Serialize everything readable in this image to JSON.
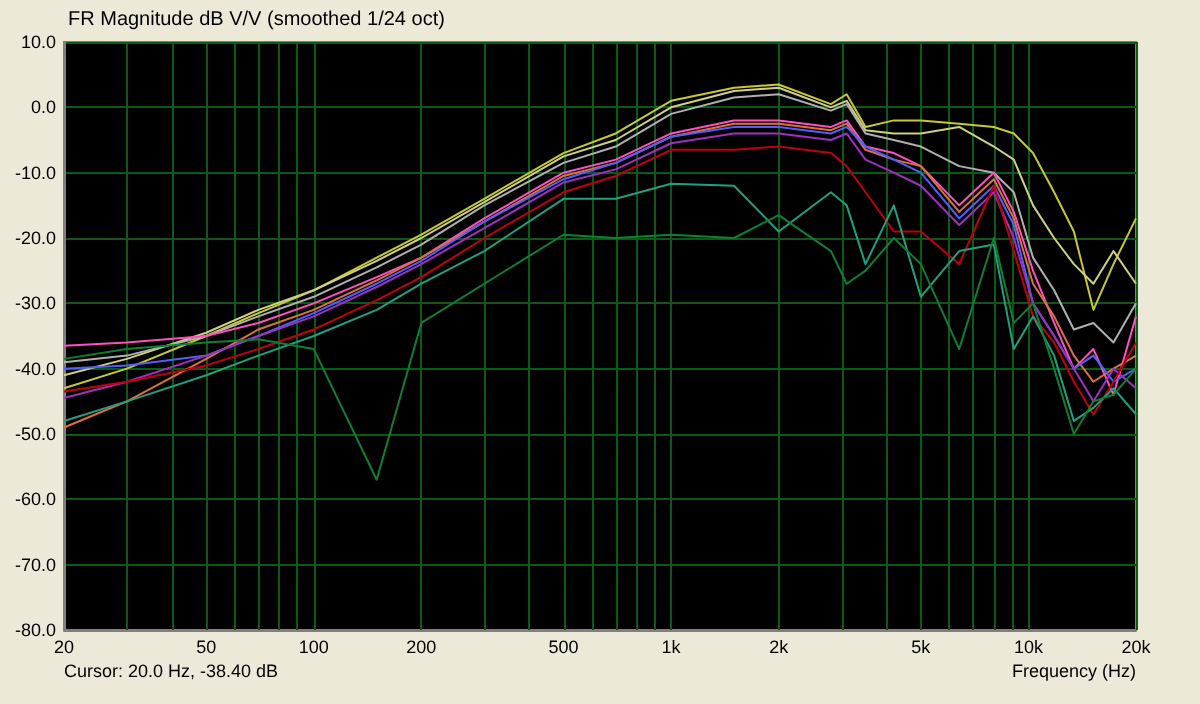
{
  "chart_data": {
    "type": "line",
    "title": "FR Magnitude dB V/V (smoothed 1/24 oct)",
    "xlabel": "Frequency (Hz)",
    "annotations": [
      "Cursor: 20.0 Hz, -38.40 dB"
    ],
    "x": [
      20,
      30,
      50,
      70,
      100,
      150,
      200,
      300,
      500,
      700,
      1000,
      1500,
      2000,
      2800,
      3100,
      3500,
      4200,
      5000,
      6400,
      8000,
      9100,
      10300,
      11800,
      13400,
      15200,
      17300,
      20000
    ],
    "series": [
      {
        "color": "#c8c832",
        "values": [
          -43,
          -40,
          -35,
          -31.5,
          -28,
          -23,
          -19.5,
          -14,
          -7,
          -4,
          1,
          3,
          3.5,
          0.5,
          2,
          -3,
          -2,
          -2,
          -2.5,
          -3,
          -4,
          -7,
          -13,
          -19,
          -31,
          -24,
          -17
        ]
      },
      {
        "color": "#d0d080",
        "values": [
          -41,
          -38.5,
          -34.5,
          -31,
          -28,
          -23.5,
          -20,
          -14.5,
          -7.5,
          -5,
          0,
          2.5,
          3,
          0,
          1,
          -3.5,
          -4,
          -4,
          -3,
          -6,
          -8,
          -15,
          -20,
          -24,
          -27,
          -22,
          -27
        ]
      },
      {
        "color": "#b0b0b0",
        "values": [
          -39,
          -38,
          -35,
          -32,
          -29,
          -24.5,
          -21,
          -15,
          -8.5,
          -6,
          -1,
          1.5,
          2,
          -0.5,
          0.5,
          -4,
          -5,
          -6,
          -9,
          -10,
          -13,
          -23,
          -28,
          -34,
          -33,
          -36,
          -30
        ]
      },
      {
        "color": "#ff50c0",
        "values": [
          -36.5,
          -36,
          -35,
          -33,
          -30,
          -26,
          -23,
          -17,
          -10,
          -8,
          -4,
          -2,
          -2,
          -3,
          -2,
          -6,
          -7,
          -9,
          -15,
          -10,
          -16,
          -25,
          -33,
          -40,
          -37,
          -44,
          -32
        ]
      },
      {
        "color": "#e07040",
        "values": [
          -49,
          -45,
          -38.5,
          -34,
          -31,
          -26.5,
          -23,
          -17.5,
          -10.5,
          -8.5,
          -4.5,
          -2.5,
          -2.5,
          -3.5,
          -2.5,
          -6.5,
          -8,
          -9,
          -16,
          -11,
          -17,
          -27,
          -32,
          -38,
          -42,
          -40,
          -38
        ]
      },
      {
        "color": "#5060ff",
        "values": [
          -40,
          -39.5,
          -38,
          -35,
          -31.5,
          -27,
          -23.5,
          -17.5,
          -11,
          -8.5,
          -4.5,
          -3,
          -3,
          -4,
          -3,
          -6,
          -8,
          -10,
          -17,
          -12,
          -18,
          -30,
          -35,
          -40,
          -38,
          -42,
          -40
        ]
      },
      {
        "color": "#a030c0",
        "values": [
          -44.5,
          -42,
          -38,
          -35,
          -32,
          -27.5,
          -24,
          -18.5,
          -11.5,
          -9.5,
          -5.5,
          -4,
          -4,
          -5,
          -4,
          -8,
          -10,
          -12,
          -18,
          -13,
          -20,
          -30,
          -35,
          -40,
          -45,
          -40,
          -43
        ]
      },
      {
        "color": "#c00010",
        "values": [
          -43.5,
          -42,
          -39.5,
          -37,
          -34,
          -29.5,
          -26,
          -20,
          -13,
          -10.5,
          -6.5,
          -6.5,
          -6,
          -7,
          -9,
          -13,
          -19,
          -19,
          -24,
          -12,
          -22,
          -32,
          -36,
          -42,
          -47,
          -42,
          -36
        ]
      },
      {
        "color": "#20a080",
        "values": [
          -48,
          -45,
          -41,
          -38,
          -35,
          -31,
          -27,
          -22,
          -14,
          -14,
          -11.7,
          -12,
          -19,
          -13,
          -15,
          -24,
          -15,
          -29,
          -22,
          -21,
          -37,
          -32,
          -38,
          -48,
          -46,
          -43,
          -47
        ]
      },
      {
        "color": "#108030",
        "values": [
          -38.5,
          -37,
          -36,
          -35.5,
          -37,
          -57,
          -33,
          -27,
          -19.5,
          -20,
          -19.5,
          -20,
          -16.5,
          -22,
          -27,
          -25,
          -20,
          -24,
          -37,
          -20,
          -33,
          -30,
          -40,
          -50,
          -45,
          -44,
          -40
        ]
      }
    ],
    "log": "x",
    "xlim": [
      20,
      20000
    ],
    "xticks": [
      {
        "value": 20,
        "label": "20"
      },
      {
        "value": 30,
        "label": null
      },
      {
        "value": 40,
        "label": null
      },
      {
        "value": 50,
        "label": "50"
      },
      {
        "value": 60,
        "label": null
      },
      {
        "value": 70,
        "label": null
      },
      {
        "value": 80,
        "label": null
      },
      {
        "value": 90,
        "label": null
      },
      {
        "value": 100,
        "label": "100"
      },
      {
        "value": 200,
        "label": "200"
      },
      {
        "value": 300,
        "label": null
      },
      {
        "value": 400,
        "label": null
      },
      {
        "value": 500,
        "label": "500"
      },
      {
        "value": 600,
        "label": null
      },
      {
        "value": 700,
        "label": null
      },
      {
        "value": 800,
        "label": null
      },
      {
        "value": 900,
        "label": null
      },
      {
        "value": 1000,
        "label": "1k"
      },
      {
        "value": 2000,
        "label": "2k"
      },
      {
        "value": 3000,
        "label": null
      },
      {
        "value": 4000,
        "label": null
      },
      {
        "value": 5000,
        "label": "5k"
      },
      {
        "value": 6000,
        "label": null
      },
      {
        "value": 7000,
        "label": null
      },
      {
        "value": 8000,
        "label": null
      },
      {
        "value": 9000,
        "label": null
      },
      {
        "value": 10000,
        "label": "10k"
      },
      {
        "value": 20000,
        "label": "20k"
      }
    ],
    "ylim": [
      -80,
      10
    ],
    "yticks": [
      {
        "value": -80,
        "label": "-80.0"
      },
      {
        "value": -70,
        "label": "-70.0"
      },
      {
        "value": -60,
        "label": "-60.0"
      },
      {
        "value": -50,
        "label": "-50.0"
      },
      {
        "value": -40,
        "label": "-40.0"
      },
      {
        "value": -30,
        "label": "-30.0"
      },
      {
        "value": -20,
        "label": "-20.0"
      },
      {
        "value": -10,
        "label": "-10.0"
      },
      {
        "value": 0,
        "label": "0.0"
      },
      {
        "value": 10,
        "label": "10.0"
      }
    ],
    "grid": true,
    "marker": "none",
    "line_style": "solid"
  }
}
